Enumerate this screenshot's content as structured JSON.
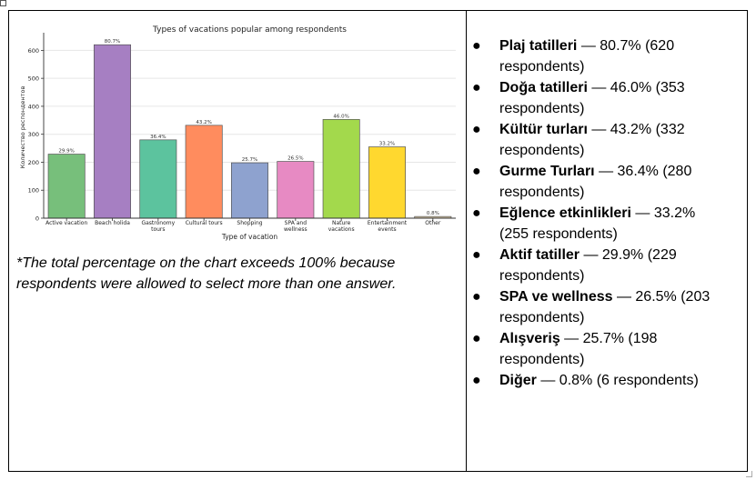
{
  "chart_data": {
    "type": "bar",
    "title": "Types of vacations popular among respondents",
    "xlabel": "Type of vacation",
    "ylabel": "Количество респондентов",
    "ylim": [
      0,
      650
    ],
    "yticks": [
      "0",
      "100",
      "200",
      "300",
      "400",
      "500",
      "600"
    ],
    "grid": true,
    "categories": [
      {
        "lines": [
          "Active vacation"
        ]
      },
      {
        "lines": [
          "Beach holida"
        ]
      },
      {
        "lines": [
          "Gastronomy",
          "tours"
        ]
      },
      {
        "lines": [
          "Cultural tours"
        ]
      },
      {
        "lines": [
          "Shopping"
        ]
      },
      {
        "lines": [
          "SPA and",
          "wellness"
        ]
      },
      {
        "lines": [
          "Nature",
          "vacations"
        ]
      },
      {
        "lines": [
          "Entertainment",
          "events"
        ]
      },
      {
        "lines": [
          "Other"
        ]
      }
    ],
    "values": [
      229,
      620,
      280,
      332,
      198,
      203,
      353,
      255,
      6
    ],
    "value_labels": [
      "29.9%",
      "80.7%",
      "36.4%",
      "43.2%",
      "25.7%",
      "26.5%",
      "46.0%",
      "33.2%",
      "0.8%"
    ],
    "colors": [
      "#77bf7b",
      "#a67fc2",
      "#5cc39e",
      "#ff8c5e",
      "#8ea2cf",
      "#e78ac3",
      "#a3d94c",
      "#ffd82f",
      "#d8c8a7"
    ]
  },
  "note": "*The total percentage on the chart exceeds 100% because respondents were allowed to select more than one answer.",
  "stats": [
    {
      "name": "Plaj tatilleri",
      "rest": " — 80.7% (620 respondents)"
    },
    {
      "name": "Doğa tatilleri",
      "rest": " — 46.0% (353 respondents)"
    },
    {
      "name": "Kültür turları",
      "rest": " — 43.2% (332 respondents)"
    },
    {
      "name": "Gurme Turları",
      "rest": " — 36.4% (280 respondents)"
    },
    {
      "name": "Eğlence etkinlikleri",
      "rest": " — 33.2% (255 respondents)"
    },
    {
      "name": "Aktif tatiller",
      "rest": " — 29.9% (229 respondents)"
    },
    {
      "name": "SPA ve wellness",
      "rest": " — 26.5% (203 respondents)"
    },
    {
      "name": "Alışveriş",
      "rest": " — 25.7% (198 respondents)"
    },
    {
      "name": "Diğer",
      "rest": " — 0.8% (6 respondents)"
    }
  ],
  "bullet_char": "●",
  "anchor_glyph": "+"
}
